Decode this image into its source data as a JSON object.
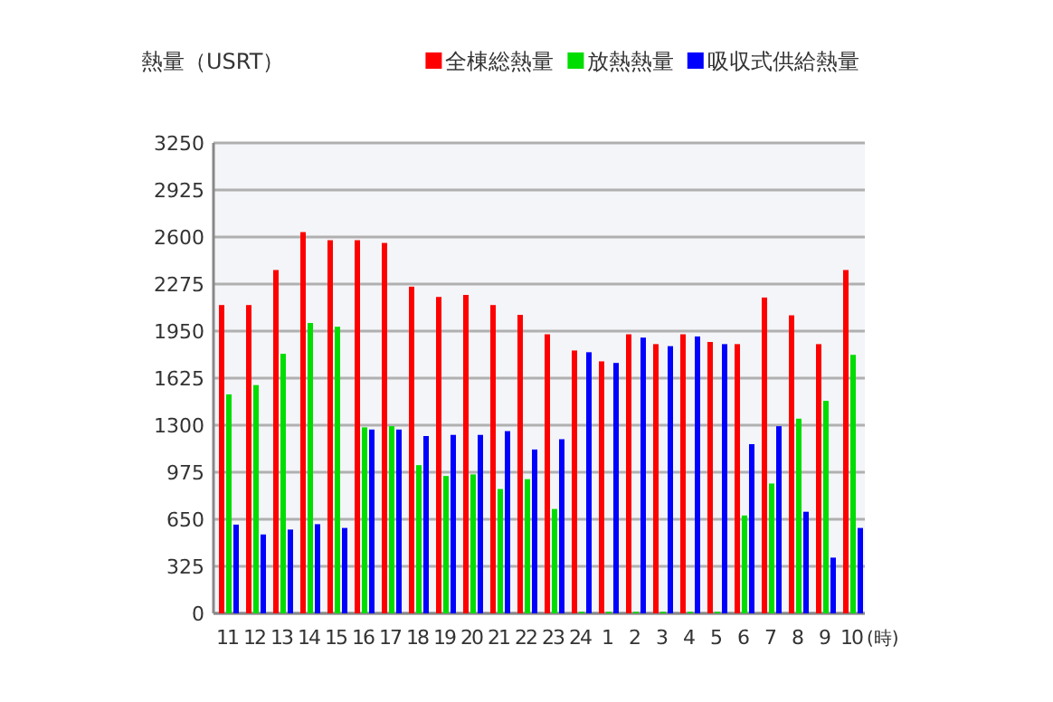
{
  "chart_data": {
    "type": "bar",
    "ylabel": "熱量（USRT）",
    "xlabel": "(時)",
    "categories": [
      "11",
      "12",
      "13",
      "14",
      "15",
      "16",
      "17",
      "18",
      "19",
      "20",
      "21",
      "22",
      "23",
      "24",
      "1",
      "2",
      "3",
      "4",
      "5",
      "6",
      "7",
      "8",
      "9",
      "10"
    ],
    "series": [
      {
        "name": "全棟総熱量",
        "color": "#ff0000",
        "values": [
          2130,
          2130,
          2372,
          2634,
          2578,
          2578,
          2559,
          2257,
          2186,
          2200,
          2130,
          2062,
          1928,
          1816,
          1741,
          1928,
          1860,
          1928,
          1875,
          1860,
          2182,
          2059,
          1860,
          2372
        ]
      },
      {
        "name": "放熱熱量",
        "color": "#00dd00",
        "values": [
          1513,
          1577,
          1793,
          2006,
          1980,
          1285,
          1293,
          1024,
          949,
          960,
          859,
          927,
          721,
          10,
          10,
          10,
          10,
          10,
          10,
          676,
          897,
          1345,
          1468,
          1786
        ]
      },
      {
        "name": "吸収式供給熱量",
        "color": "#0000ff",
        "values": [
          613,
          545,
          579,
          616,
          590,
          1270,
          1270,
          1225,
          1233,
          1233,
          1259,
          1132,
          1203,
          1804,
          1730,
          1905,
          1846,
          1913,
          1860,
          1169,
          1293,
          702,
          385,
          590
        ]
      }
    ],
    "ylim": [
      0,
      3250
    ],
    "yticks": [
      0,
      325,
      650,
      975,
      1300,
      1625,
      1950,
      2275,
      2600,
      2925,
      3250
    ],
    "grid": "y",
    "legend": "top right"
  }
}
